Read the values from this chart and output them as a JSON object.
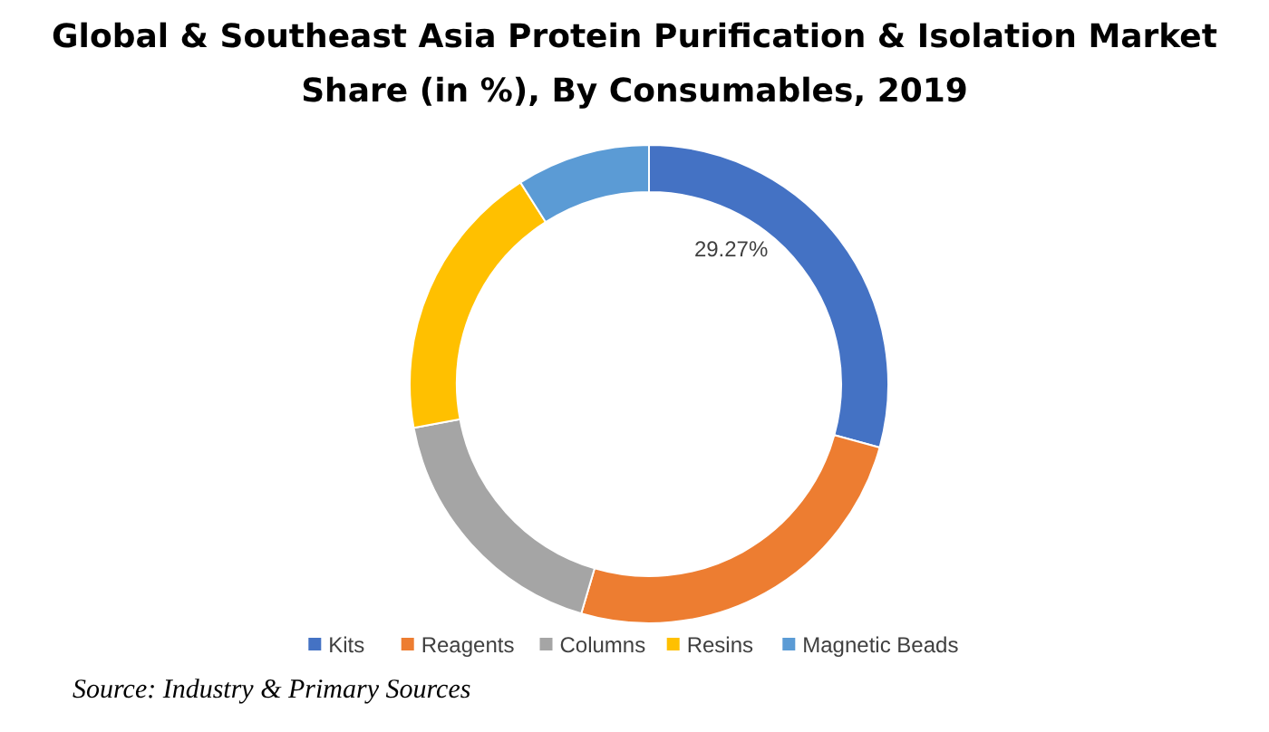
{
  "chart_data": {
    "type": "donut",
    "title": "Global & Southeast Asia Protein Purification & Isolation Market Share (in %), By Consumables, 2019",
    "categories": [
      "Kits",
      "Reagents",
      "Columns",
      "Resins",
      "Magnetic Beads"
    ],
    "values": [
      29.27,
      25.3,
      17.5,
      18.9,
      9.03
    ],
    "colors": [
      "#4472c4",
      "#ed7d31",
      "#a5a5a5",
      "#ffc000",
      "#5b9bd5"
    ],
    "value_labels": [
      "29.27%",
      null,
      null,
      null,
      null
    ],
    "legend": "bottom",
    "annotations": [
      "Source: Industry & Primary Sources"
    ]
  }
}
